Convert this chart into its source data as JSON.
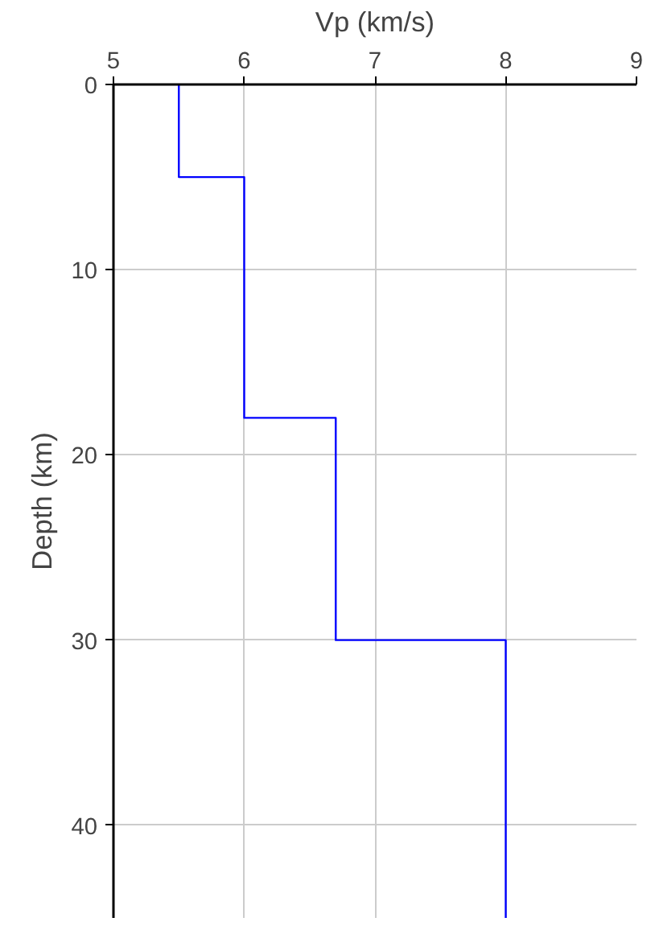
{
  "chart_data": {
    "type": "line",
    "xlabel": "Vp (km/s)",
    "ylabel": "Depth (km)",
    "x": [
      5.5,
      5.5,
      6,
      6,
      6.7,
      6.7,
      8,
      8
    ],
    "series": [
      {
        "color": "#0000ff",
        "values": [
          0,
          5,
          5,
          18,
          18,
          30,
          30,
          45
        ]
      }
    ],
    "xlim": [
      5,
      9
    ],
    "xticks": [
      5,
      6,
      7,
      8,
      9
    ],
    "ylim": [
      45,
      0
    ],
    "yticks": [
      0,
      10,
      20,
      30,
      40
    ],
    "grid": true,
    "line_style": "solid",
    "marker": "none"
  }
}
